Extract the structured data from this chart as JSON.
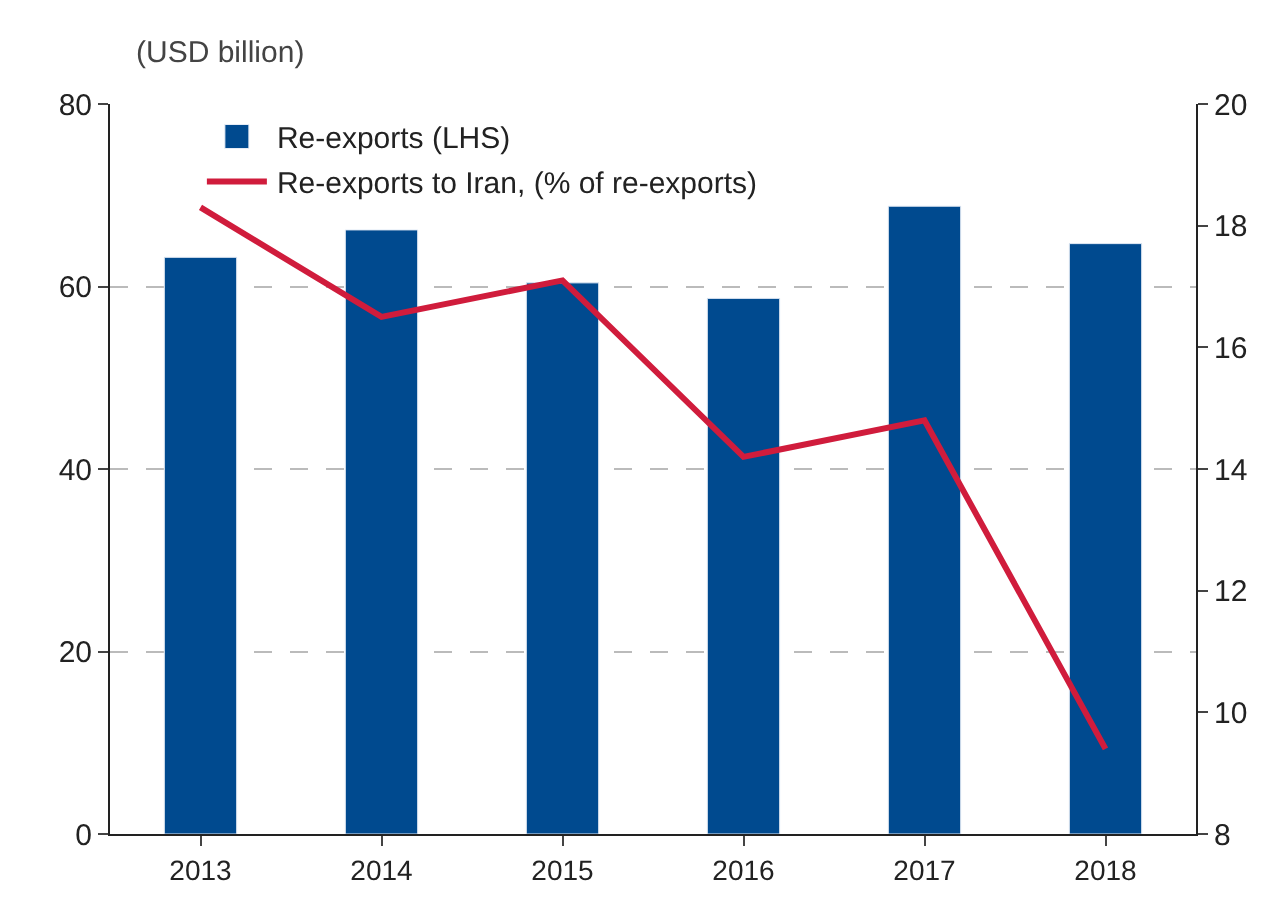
{
  "chart_data": {
    "type": "bar",
    "categories": [
      "2013",
      "2014",
      "2015",
      "2016",
      "2017",
      "2018"
    ],
    "series": [
      {
        "name": "Re-exports (LHS)",
        "color": "#004a8f",
        "values": [
          63.2,
          66.2,
          60.4,
          58.7,
          68.8,
          64.7
        ]
      },
      {
        "name": "Re-exports to Iran, (% of re-exports)",
        "type": "line",
        "axis": "y2",
        "color": "#d01c3c",
        "values": [
          18.3,
          16.5,
          17.1,
          14.2,
          14.8,
          9.4
        ]
      }
    ],
    "ylim": [
      0,
      80
    ],
    "yticks": [
      0,
      20,
      40,
      60,
      80
    ],
    "y2lim": [
      8,
      20
    ],
    "y2ticks": [
      8,
      10,
      12,
      14,
      16,
      18,
      20
    ],
    "annotations": [
      "(USD billion)"
    ],
    "grid": "y",
    "legend": "top left",
    "marker": "none",
    "line_style": "solid"
  }
}
